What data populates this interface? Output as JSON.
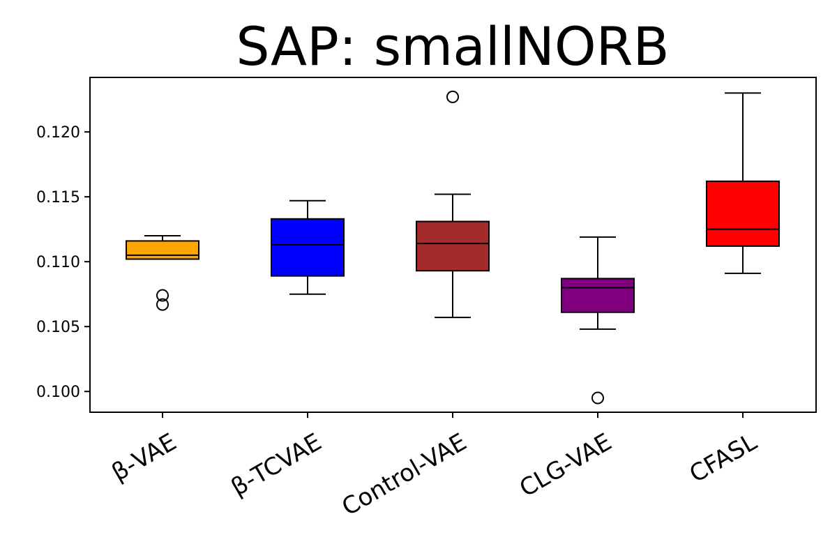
{
  "chart_data": {
    "type": "box",
    "title": "SAP: smallNORB",
    "xlabel": "",
    "ylabel": "",
    "ylim": [
      0.0984,
      0.1242
    ],
    "yticks": [
      0.1,
      0.105,
      0.11,
      0.115,
      0.12
    ],
    "ytick_labels": [
      "0.100",
      "0.105",
      "0.110",
      "0.115",
      "0.120"
    ],
    "grid": false,
    "categories": [
      "β-VAE",
      "β-TCVAE",
      "Control-VAE",
      "CLG-VAE",
      "CFASL"
    ],
    "series": [
      {
        "name": "β-VAE",
        "color": "#FFA500",
        "whisker_low": 0.1102,
        "q1": 0.1102,
        "median": 0.1105,
        "q3": 0.1116,
        "whisker_high": 0.112,
        "outliers": [
          0.1074,
          0.1067
        ]
      },
      {
        "name": "β-TCVAE",
        "color": "#0000FF",
        "whisker_low": 0.1075,
        "q1": 0.1089,
        "median": 0.1113,
        "q3": 0.1133,
        "whisker_high": 0.1147,
        "outliers": []
      },
      {
        "name": "Control-VAE",
        "color": "#A52A2A",
        "whisker_low": 0.1057,
        "q1": 0.1093,
        "median": 0.1114,
        "q3": 0.1131,
        "whisker_high": 0.1152,
        "outliers": [
          0.1227
        ]
      },
      {
        "name": "CLG-VAE",
        "color": "#800080",
        "whisker_low": 0.1048,
        "q1": 0.1061,
        "median": 0.108,
        "q3": 0.1087,
        "whisker_high": 0.1119,
        "outliers": [
          0.0995
        ]
      },
      {
        "name": "CFASL",
        "color": "#FF0000",
        "whisker_low": 0.1091,
        "q1": 0.1112,
        "median": 0.1125,
        "q3": 0.1162,
        "whisker_high": 0.123,
        "outliers": []
      }
    ]
  }
}
